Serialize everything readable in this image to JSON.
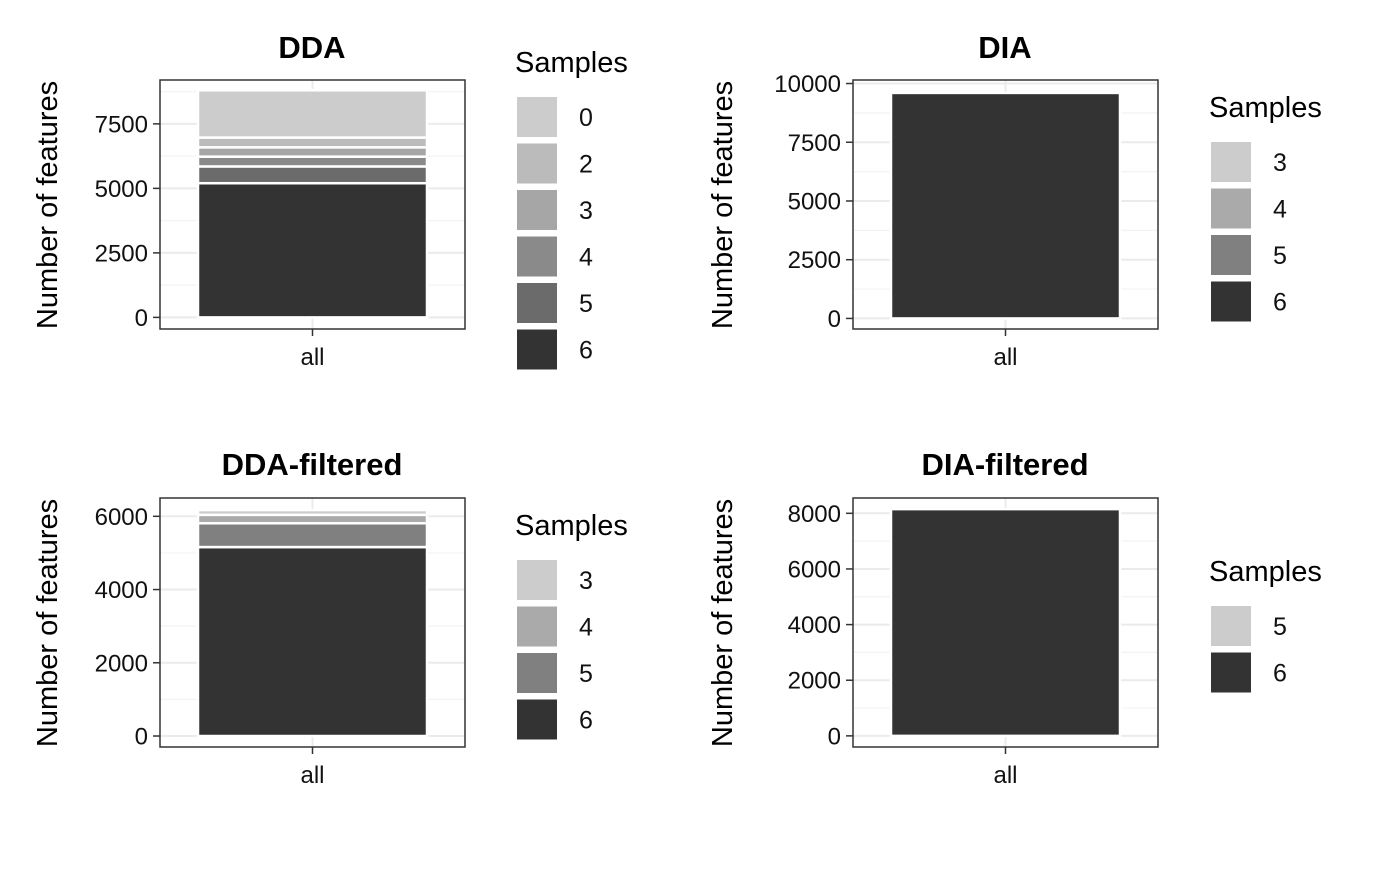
{
  "chart_data": [
    {
      "type": "bar",
      "stacked": true,
      "title": "DDA",
      "xlabel": "",
      "ylabel": "Number of features",
      "categories": [
        "all"
      ],
      "ylim": [
        -450,
        9200
      ],
      "yticks": [
        0,
        2500,
        5000,
        7500
      ],
      "grid": true,
      "legend": {
        "title": "Samples",
        "position": "right"
      },
      "series": [
        {
          "name": "6",
          "values": [
            5200
          ],
          "color": "#333333"
        },
        {
          "name": "5",
          "values": [
            650
          ],
          "color": "#6B6B6B"
        },
        {
          "name": "4",
          "values": [
            380
          ],
          "color": "#8A8A8A"
        },
        {
          "name": "3",
          "values": [
            360
          ],
          "color": "#A6A6A6"
        },
        {
          "name": "2",
          "values": [
            380
          ],
          "color": "#BBBBBB"
        },
        {
          "name": "0",
          "values": [
            1830
          ],
          "color": "#CCCCCC"
        }
      ]
    },
    {
      "type": "bar",
      "stacked": true,
      "title": "DIA",
      "xlabel": "",
      "ylabel": "Number of features",
      "categories": [
        "all"
      ],
      "ylim": [
        -450,
        10150
      ],
      "yticks": [
        0,
        2500,
        5000,
        7500,
        10000
      ],
      "grid": true,
      "legend": {
        "title": "Samples",
        "position": "right"
      },
      "series": [
        {
          "name": "6",
          "values": [
            9600
          ],
          "color": "#333333"
        },
        {
          "name": "5",
          "values": [
            0
          ],
          "color": "#808080"
        },
        {
          "name": "4",
          "values": [
            0
          ],
          "color": "#AAAAAA"
        },
        {
          "name": "3",
          "values": [
            0
          ],
          "color": "#CCCCCC"
        }
      ]
    },
    {
      "type": "bar",
      "stacked": true,
      "title": "DDA-filtered",
      "xlabel": "",
      "ylabel": "Number of features",
      "categories": [
        "all"
      ],
      "ylim": [
        -300,
        6500
      ],
      "yticks": [
        0,
        2000,
        4000,
        6000
      ],
      "grid": true,
      "legend": {
        "title": "Samples",
        "position": "right"
      },
      "series": [
        {
          "name": "6",
          "values": [
            5160
          ],
          "color": "#333333"
        },
        {
          "name": "5",
          "values": [
            650
          ],
          "color": "#808080"
        },
        {
          "name": "4",
          "values": [
            230
          ],
          "color": "#AAAAAA"
        },
        {
          "name": "3",
          "values": [
            130
          ],
          "color": "#CCCCCC"
        }
      ]
    },
    {
      "type": "bar",
      "stacked": true,
      "title": "DIA-filtered",
      "xlabel": "",
      "ylabel": "Number of features",
      "categories": [
        "all"
      ],
      "ylim": [
        -400,
        8550
      ],
      "yticks": [
        0,
        2000,
        4000,
        6000,
        8000
      ],
      "grid": true,
      "legend": {
        "title": "Samples",
        "position": "right"
      },
      "series": [
        {
          "name": "6",
          "values": [
            8150
          ],
          "color": "#333333"
        },
        {
          "name": "5",
          "values": [
            0
          ],
          "color": "#CCCCCC"
        }
      ]
    }
  ]
}
